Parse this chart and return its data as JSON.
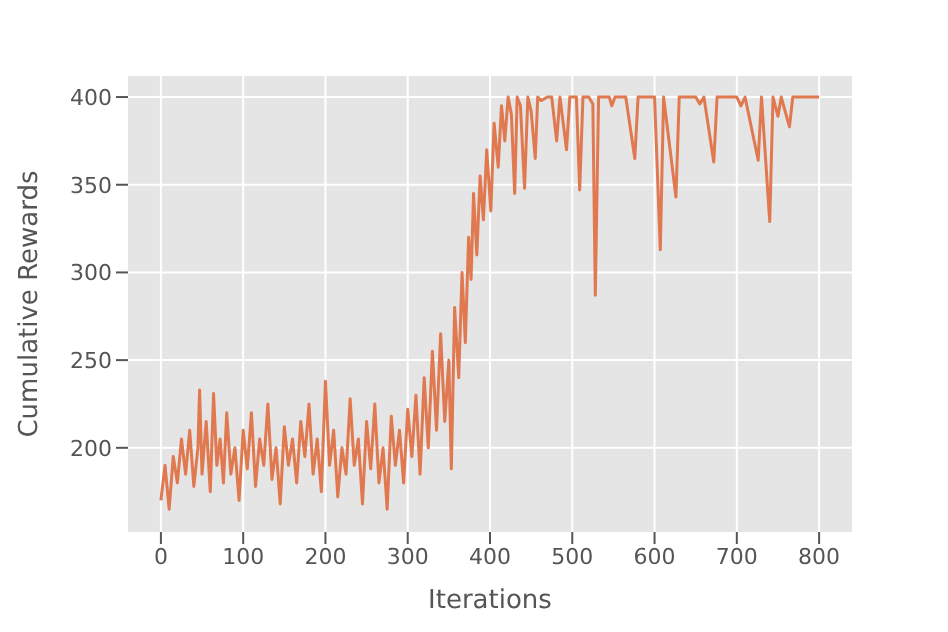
{
  "chart_data": {
    "type": "line",
    "xlabel": "Iterations",
    "ylabel": "Cumulative Rewards",
    "xlim": [
      -40,
      840
    ],
    "xticks": [
      0,
      100,
      200,
      300,
      400,
      500,
      600,
      700,
      800
    ],
    "ylim": [
      152,
      412
    ],
    "yticks": [
      200,
      250,
      300,
      350,
      400
    ],
    "grid": true,
    "marker": "none",
    "line_style": "solid",
    "series": [
      {
        "color": "#e07850",
        "x": [
          0,
          5,
          10,
          15,
          20,
          25,
          30,
          35,
          40,
          45,
          47,
          50,
          55,
          60,
          64,
          68,
          72,
          76,
          80,
          85,
          90,
          95,
          100,
          105,
          110,
          115,
          120,
          125,
          130,
          135,
          140,
          145,
          150,
          155,
          160,
          165,
          170,
          175,
          180,
          185,
          190,
          195,
          200,
          205,
          210,
          215,
          220,
          225,
          230,
          235,
          240,
          245,
          250,
          255,
          260,
          265,
          270,
          275,
          280,
          285,
          290,
          295,
          300,
          305,
          310,
          315,
          320,
          325,
          330,
          335,
          340,
          345,
          350,
          353,
          357,
          362,
          366,
          370,
          374,
          377,
          380,
          384,
          388,
          392,
          396,
          401,
          405,
          410,
          414,
          418,
          422,
          426,
          430,
          433,
          437,
          442,
          446,
          450,
          455,
          458,
          462,
          470,
          475,
          481,
          485,
          493,
          497,
          505,
          509,
          513,
          520,
          525,
          528,
          532,
          545,
          548,
          552,
          565,
          576,
          580,
          595,
          600,
          607,
          611,
          626,
          630,
          650,
          655,
          660,
          672,
          676,
          700,
          705,
          710,
          726,
          730,
          740,
          744,
          750,
          754,
          764,
          768,
          800
        ],
        "values": [
          170,
          190,
          165,
          195,
          180,
          205,
          185,
          210,
          178,
          200,
          233,
          185,
          215,
          175,
          231,
          190,
          205,
          180,
          220,
          185,
          200,
          170,
          210,
          188,
          220,
          178,
          205,
          190,
          225,
          182,
          200,
          168,
          212,
          190,
          205,
          180,
          215,
          195,
          225,
          185,
          205,
          175,
          238,
          190,
          210,
          172,
          200,
          185,
          228,
          190,
          205,
          168,
          215,
          188,
          225,
          180,
          200,
          165,
          218,
          190,
          210,
          180,
          222,
          195,
          230,
          185,
          240,
          200,
          255,
          210,
          265,
          215,
          250,
          188,
          280,
          240,
          300,
          260,
          320,
          296,
          345,
          310,
          355,
          330,
          370,
          335,
          385,
          360,
          395,
          375,
          400,
          390,
          345,
          400,
          395,
          348,
          400,
          392,
          365,
          400,
          398,
          400,
          400,
          375,
          400,
          370,
          400,
          400,
          347,
          400,
          400,
          396,
          287,
          400,
          400,
          395,
          400,
          400,
          365,
          400,
          400,
          400,
          313,
          400,
          343,
          400,
          400,
          396,
          400,
          363,
          400,
          400,
          395,
          400,
          364,
          400,
          329,
          400,
          389,
          400,
          383,
          400,
          400
        ]
      }
    ]
  }
}
